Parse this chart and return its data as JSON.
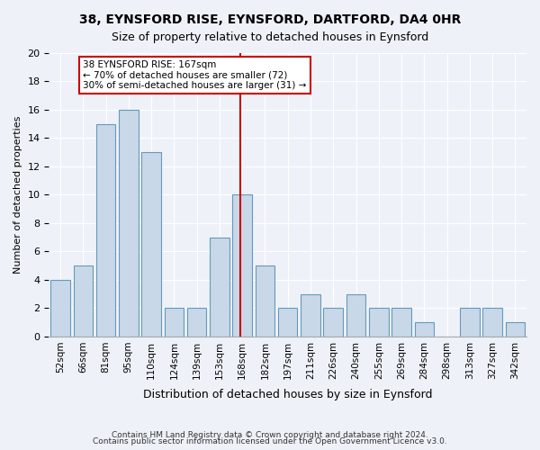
{
  "title1": "38, EYNSFORD RISE, EYNSFORD, DARTFORD, DA4 0HR",
  "title2": "Size of property relative to detached houses in Eynsford",
  "xlabel": "Distribution of detached houses by size in Eynsford",
  "ylabel": "Number of detached properties",
  "bins": [
    "52sqm",
    "66sqm",
    "81sqm",
    "95sqm",
    "110sqm",
    "124sqm",
    "139sqm",
    "153sqm",
    "168sqm",
    "182sqm",
    "197sqm",
    "211sqm",
    "226sqm",
    "240sqm",
    "255sqm",
    "269sqm",
    "284sqm",
    "298sqm",
    "313sqm",
    "327sqm",
    "342sqm"
  ],
  "values": [
    4,
    5,
    15,
    16,
    13,
    2,
    2,
    7,
    10,
    5,
    2,
    3,
    2,
    3,
    2,
    2,
    1,
    0,
    2,
    2,
    1
  ],
  "bar_color": "#c8d8e8",
  "bar_edge_color": "#6699bb",
  "vline_color": "#cc0000",
  "vline_x": 7.925,
  "annotation_text": "38 EYNSFORD RISE: 167sqm\n← 70% of detached houses are smaller (72)\n30% of semi-detached houses are larger (31) →",
  "annotation_box_color": "#cc0000",
  "bg_color": "#eef2f8",
  "footnote1": "Contains HM Land Registry data © Crown copyright and database right 2024.",
  "footnote2": "Contains public sector information licensed under the Open Government Licence v3.0.",
  "ylim": [
    0,
    20
  ],
  "yticks": [
    0,
    2,
    4,
    6,
    8,
    10,
    12,
    14,
    16,
    18,
    20
  ]
}
